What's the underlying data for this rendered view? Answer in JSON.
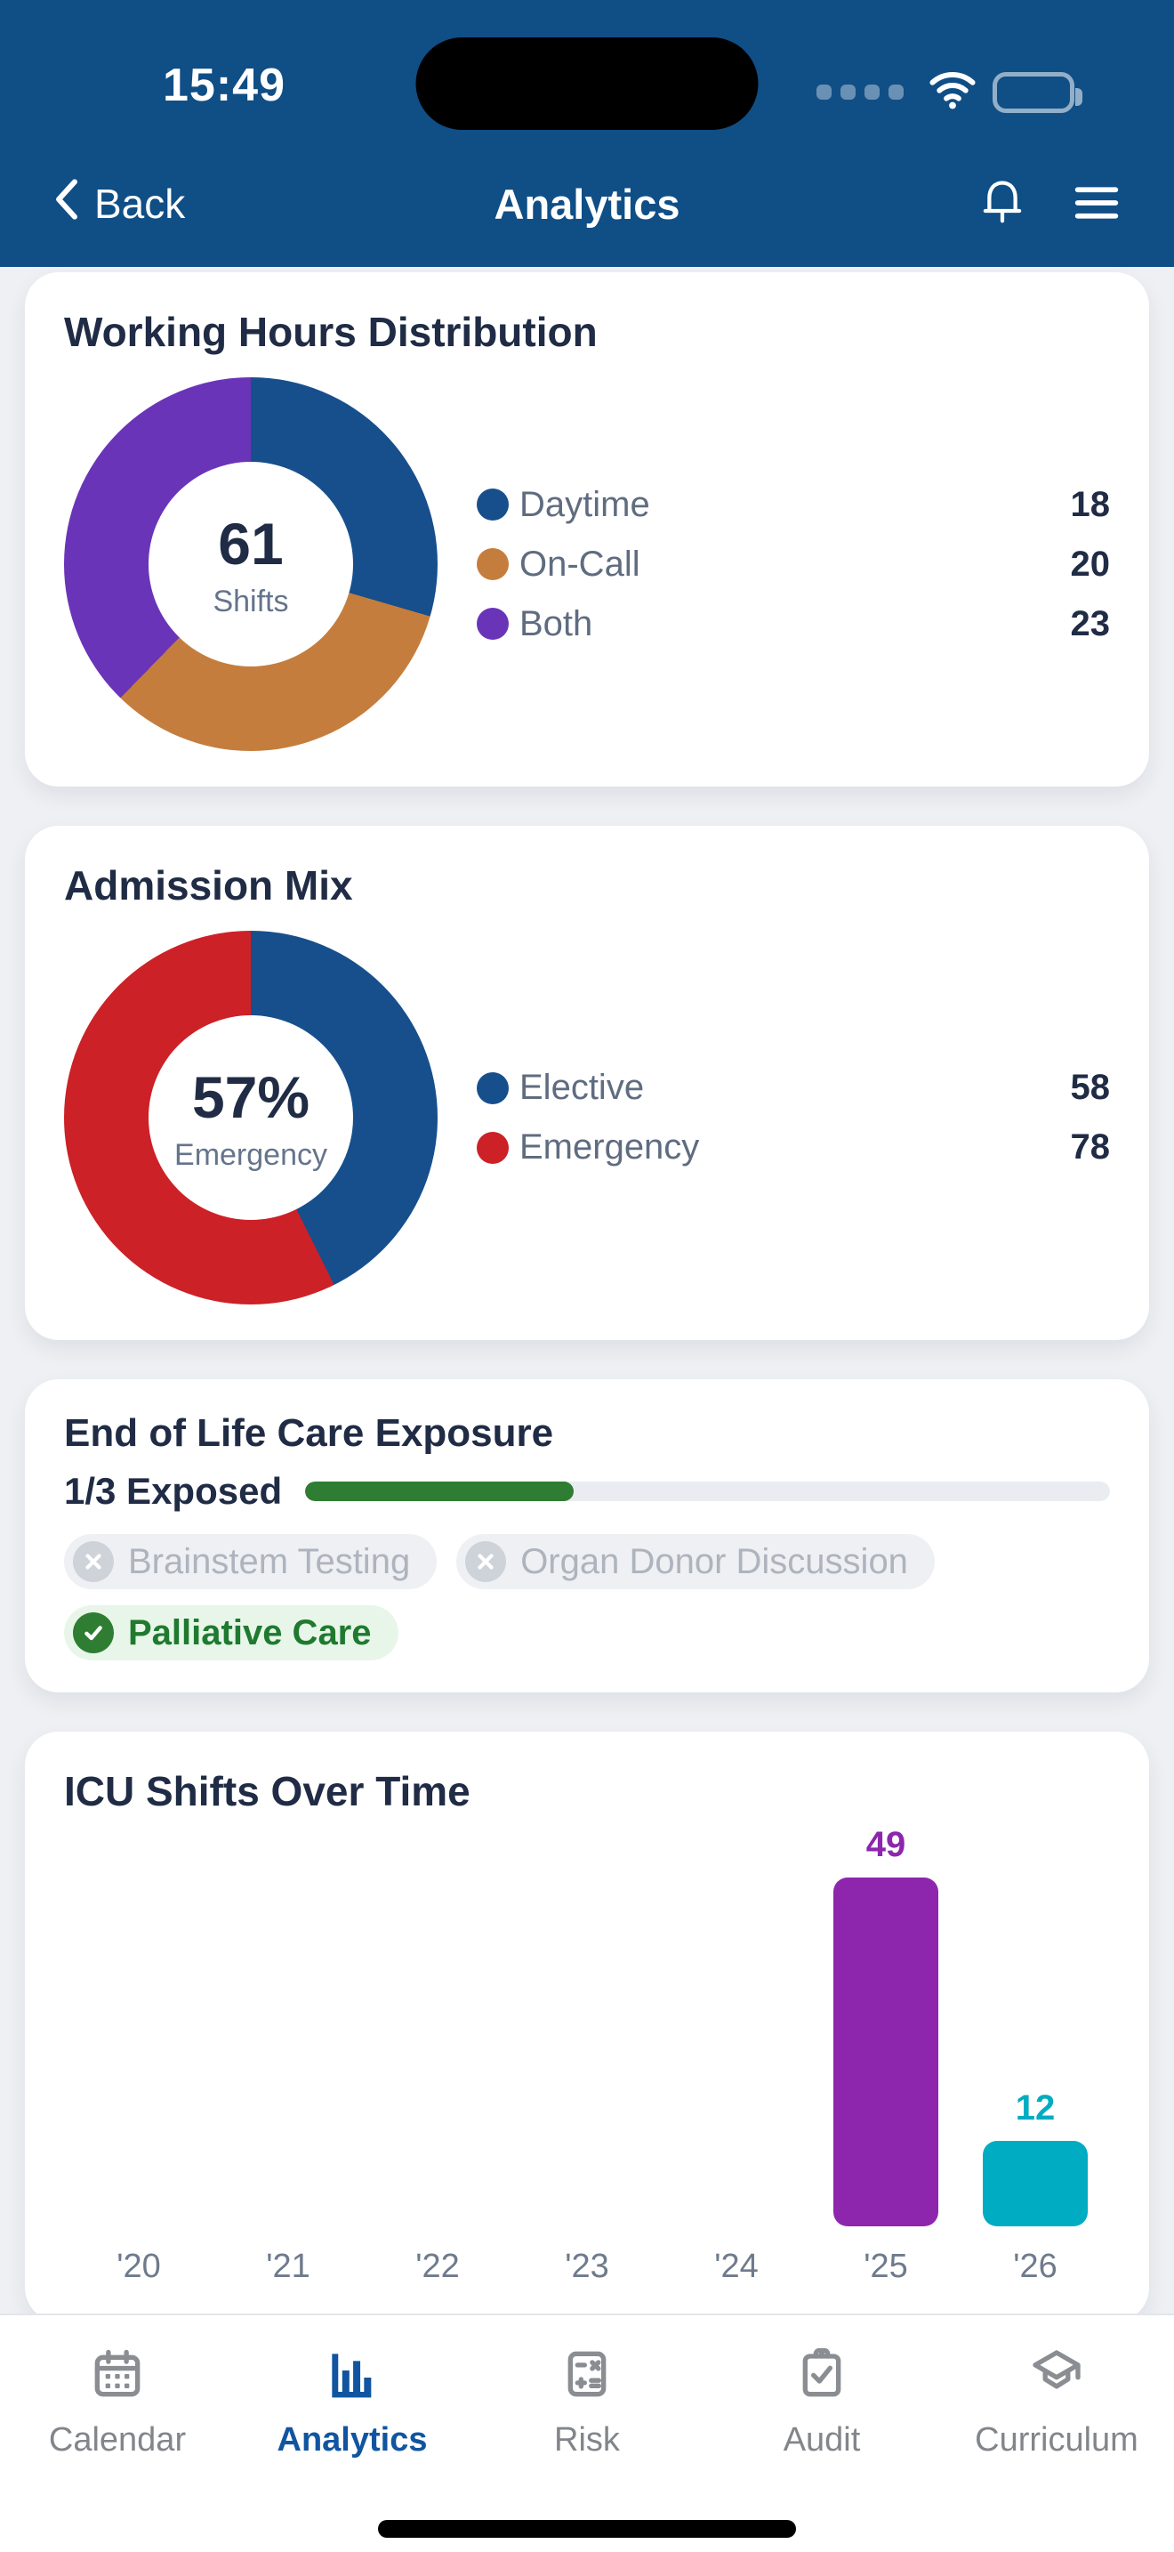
{
  "theme": {
    "header_bg": "#104e86",
    "card_bg": "#ffffff",
    "title_color": "#202c45",
    "active_tab_color": "#1155a0",
    "progress_green": "#2e7d32"
  },
  "status_bar": {
    "time": "15:49"
  },
  "nav": {
    "back_label": "Back",
    "title": "Analytics"
  },
  "chart_data": [
    {
      "type": "pie",
      "subtype": "donut",
      "title": "Working Hours Distribution",
      "center": {
        "value": "61",
        "label": "Shifts"
      },
      "legend_position": "right",
      "series": [
        {
          "name": "Daytime",
          "value": 18,
          "color": "#164f8c"
        },
        {
          "name": "On-Call",
          "value": 20,
          "color": "#c57d3e"
        },
        {
          "name": "Both",
          "value": 23,
          "color": "#6a34b9"
        }
      ]
    },
    {
      "type": "pie",
      "subtype": "donut",
      "title": "Admission Mix",
      "center": {
        "value": "57%",
        "label": "Emergency"
      },
      "legend_position": "right",
      "series": [
        {
          "name": "Elective",
          "value": 58,
          "color": "#164f8c"
        },
        {
          "name": "Emergency",
          "value": 78,
          "color": "#cc2127"
        }
      ]
    },
    {
      "type": "bar",
      "title": "ICU Shifts Over Time",
      "categories": [
        "'20",
        "'21",
        "'22",
        "'23",
        "'24",
        "'25",
        "'26"
      ],
      "values": [
        0,
        0,
        0,
        0,
        0,
        49,
        12
      ],
      "bar_colors": [
        null,
        null,
        null,
        null,
        null,
        "#8d26ad",
        "#00acc1"
      ],
      "ylim": [
        0,
        49
      ],
      "grid": false,
      "value_labels": true
    }
  ],
  "exposure": {
    "title": "End of Life Care Exposure",
    "progress_label": "1/3 Exposed",
    "completed": 1,
    "total": 3,
    "bar_color": "#2e7d32",
    "track_color": "#e9edf2",
    "chips": [
      {
        "label": "Brainstem Testing",
        "done": false
      },
      {
        "label": "Organ Donor Discussion",
        "done": false
      },
      {
        "label": "Palliative Care",
        "done": true
      }
    ]
  },
  "tab_bar": {
    "active": "Analytics",
    "items": [
      {
        "label": "Calendar",
        "icon": "calendar-icon"
      },
      {
        "label": "Analytics",
        "icon": "analytics-icon"
      },
      {
        "label": "Risk",
        "icon": "risk-calculator-icon"
      },
      {
        "label": "Audit",
        "icon": "audit-clipboard-icon"
      },
      {
        "label": "Curriculum",
        "icon": "curriculum-cap-icon"
      }
    ]
  }
}
